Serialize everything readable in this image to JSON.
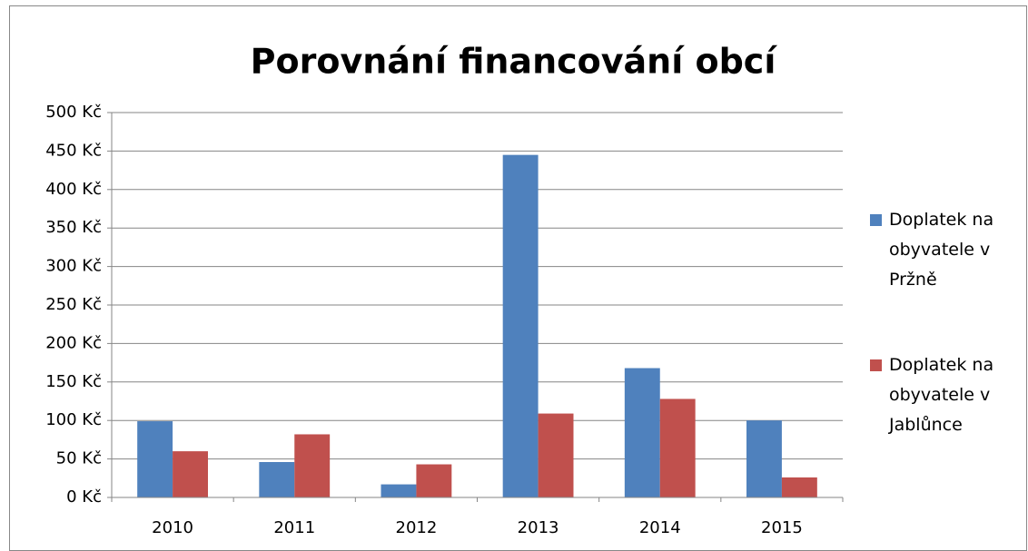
{
  "chart_data": {
    "type": "bar",
    "title": "Porovnání financování obcí",
    "categories": [
      "2010",
      "2011",
      "2012",
      "2013",
      "2014",
      "2015"
    ],
    "series": [
      {
        "name": "Doplatek na obyvatele v Pržně",
        "color": "#4f81bd",
        "values": [
          99,
          46,
          17,
          445,
          168,
          100
        ]
      },
      {
        "name": "Doplatek na obyvatele v Jablůnce",
        "color": "#c0504d",
        "values": [
          60,
          82,
          43,
          109,
          128,
          26
        ]
      }
    ],
    "ylim": [
      0,
      500
    ],
    "yticks": [
      {
        "value": 0,
        "label": "0 Kč"
      },
      {
        "value": 50,
        "label": "50 Kč"
      },
      {
        "value": 100,
        "label": "100 Kč"
      },
      {
        "value": 150,
        "label": "150 Kč"
      },
      {
        "value": 200,
        "label": "200 Kč"
      },
      {
        "value": 250,
        "label": "250 Kč"
      },
      {
        "value": 300,
        "label": "300 Kč"
      },
      {
        "value": 350,
        "label": "350 Kč"
      },
      {
        "value": 400,
        "label": "400 Kč"
      },
      {
        "value": 450,
        "label": "450 Kč"
      },
      {
        "value": 500,
        "label": "500 Kč"
      }
    ],
    "grid": true,
    "legend": "right"
  }
}
